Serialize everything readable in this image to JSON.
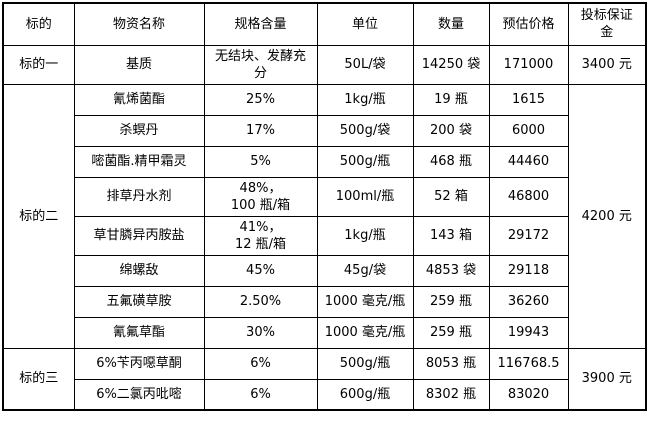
{
  "table": {
    "headers": [
      "标的",
      "物资名称",
      "规格含量",
      "单位",
      "数量",
      "预估价格",
      "投标保证金"
    ],
    "groups": [
      {
        "target": "标的一",
        "deposit": "3400 元",
        "items": [
          {
            "name": "基质",
            "spec": "无结块、发酵充分",
            "unit": "50L/袋",
            "qty": "14250 袋",
            "price": "171000"
          }
        ]
      },
      {
        "target": "标的二",
        "deposit": "4200 元",
        "items": [
          {
            "name": "氰烯菌酯",
            "spec": "25%",
            "unit": "1kg/瓶",
            "qty": "19 瓶",
            "price": "1615"
          },
          {
            "name": "杀螟丹",
            "spec": "17%",
            "unit": "500g/袋",
            "qty": "200 袋",
            "price": "6000"
          },
          {
            "name": "嘧菌酯.精甲霜灵",
            "spec": "5%",
            "unit": "500g/瓶",
            "qty": "468 瓶",
            "price": "44460"
          },
          {
            "name": "排草丹水剂",
            "spec": "48%，\n100 瓶/箱",
            "unit": "100ml/瓶",
            "qty": "52 箱",
            "price": "46800"
          },
          {
            "name": "草甘膦异丙胺盐",
            "spec": "41%，\n12 瓶/箱",
            "unit": "1kg/瓶",
            "qty": "143 箱",
            "price": "29172"
          },
          {
            "name": "绵螺敌",
            "spec": "45%",
            "unit": "45g/袋",
            "qty": "4853 袋",
            "price": "29118"
          },
          {
            "name": "五氟磺草胺",
            "spec": "2.50%",
            "unit": "1000 毫克/瓶",
            "qty": "259 瓶",
            "price": "36260"
          },
          {
            "name": "氰氟草酯",
            "spec": "30%",
            "unit": "1000 毫克/瓶",
            "qty": "259 瓶",
            "price": "19943"
          }
        ]
      },
      {
        "target": "标的三",
        "deposit": "3900 元",
        "items": [
          {
            "name": "6%苄丙噁草酮",
            "spec": "6%",
            "unit": "500g/瓶",
            "qty": "8053 瓶",
            "price": "116768.5"
          },
          {
            "name": "6%二氯丙吡嘧",
            "spec": "6%",
            "unit": "600g/瓶",
            "qty": "8302 瓶",
            "price": "83020"
          }
        ]
      }
    ],
    "colors": {
      "border": "#000000",
      "text": "#000000",
      "background": "#ffffff"
    }
  }
}
